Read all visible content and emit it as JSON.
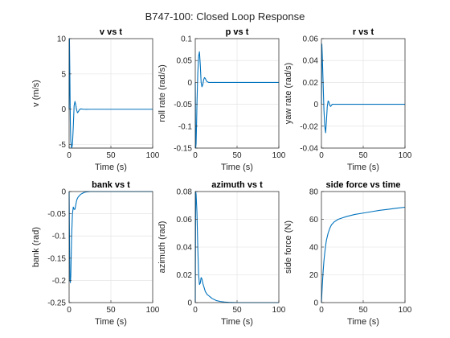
{
  "figure": {
    "title": "B747-100: Closed Loop Response",
    "line_color": "#0072BD"
  },
  "chart_data": [
    {
      "type": "line",
      "title": "v vs t",
      "xlabel": "Time (s)",
      "ylabel": "v (m/s)",
      "xlim": [
        0,
        100
      ],
      "ylim": [
        -5.5,
        10
      ],
      "xticks": [
        0,
        50,
        100
      ],
      "yticks": [
        -5,
        0,
        5,
        10
      ],
      "ytick_labels": [
        "-5",
        "0",
        "5",
        "10"
      ],
      "grid": true,
      "series": [
        {
          "x": [
            0,
            0.4,
            0.8,
            1.5,
            2,
            3,
            4,
            5,
            6,
            7,
            8,
            9,
            10,
            11,
            12,
            13,
            14,
            16,
            18,
            20,
            25,
            30,
            40,
            50,
            60,
            80,
            100
          ],
          "y": [
            0,
            10,
            6,
            -2,
            -4.5,
            -5.5,
            -5,
            -2.5,
            0.5,
            1.1,
            0.6,
            -0.1,
            -0.5,
            -0.35,
            -0.15,
            0.0,
            0.05,
            0.02,
            0,
            -0.01,
            0,
            0,
            0,
            0,
            0,
            0,
            0
          ]
        }
      ]
    },
    {
      "type": "line",
      "title": "p vs t",
      "xlabel": "Time (s)",
      "ylabel": "roll rate (rad/s)",
      "xlim": [
        0,
        100
      ],
      "ylim": [
        -0.15,
        0.1
      ],
      "xticks": [
        0,
        50,
        100
      ],
      "yticks": [
        -0.15,
        -0.1,
        -0.05,
        0,
        0.05,
        0.1
      ],
      "ytick_labels": [
        "-0.15",
        "-0.1",
        "-0.05",
        "0",
        "0.05",
        "0.1"
      ],
      "grid": true,
      "series": [
        {
          "x": [
            0,
            0.5,
            1,
            1.5,
            2,
            3,
            4,
            5,
            6,
            7,
            8,
            9,
            10,
            11,
            12,
            13,
            14,
            15,
            16,
            18,
            20,
            25,
            30,
            40,
            50,
            60,
            80,
            100
          ],
          "y": [
            0,
            -0.15,
            -0.14,
            -0.1,
            -0.05,
            0.02,
            0.06,
            0.07,
            0.04,
            0.0,
            -0.01,
            -0.005,
            0.006,
            0.011,
            0.009,
            0.005,
            0.002,
            0.001,
            0.0,
            0.0,
            0.0,
            0.0,
            0.0,
            0.0,
            0.0,
            0.0,
            0.0,
            0.0
          ]
        }
      ]
    },
    {
      "type": "line",
      "title": "r vs t",
      "xlabel": "Time (s)",
      "ylabel": "yaw rate (rad/s)",
      "xlim": [
        0,
        100
      ],
      "ylim": [
        -0.04,
        0.06
      ],
      "xticks": [
        0,
        50,
        100
      ],
      "yticks": [
        -0.04,
        -0.02,
        0,
        0.02,
        0.04,
        0.06
      ],
      "ytick_labels": [
        "-0.04",
        "-0.02",
        "0",
        "0.02",
        "0.04",
        "0.06"
      ],
      "grid": true,
      "series": [
        {
          "x": [
            0,
            0.5,
            1,
            2,
            3,
            4,
            5,
            6,
            7,
            8,
            9,
            10,
            11,
            12,
            13,
            14,
            16,
            18,
            20,
            25,
            30,
            40,
            50,
            60,
            80,
            100
          ],
          "y": [
            0,
            0.055,
            0.045,
            0.02,
            -0.005,
            -0.02,
            -0.026,
            -0.015,
            -0.002,
            0.003,
            0.002,
            -0.001,
            -0.002,
            -0.001,
            0.0,
            0.0,
            0.0,
            0.0,
            0.0,
            0.0,
            0.0,
            0.0,
            0.0,
            0.0,
            0.0,
            0.0
          ]
        }
      ]
    },
    {
      "type": "line",
      "title": "bank vs t",
      "xlabel": "Time (s)",
      "ylabel": "bank (rad)",
      "xlim": [
        0,
        100
      ],
      "ylim": [
        -0.25,
        0
      ],
      "xticks": [
        0,
        50,
        100
      ],
      "yticks": [
        -0.25,
        -0.2,
        -0.15,
        -0.1,
        -0.05,
        0
      ],
      "ytick_labels": [
        "-0.25",
        "-0.2",
        "-0.15",
        "-0.1",
        "-0.05",
        "0"
      ],
      "grid": true,
      "series": [
        {
          "x": [
            0,
            0.5,
            1,
            1.5,
            2,
            3,
            4,
            5,
            6,
            7,
            8,
            9,
            10,
            11,
            12,
            13,
            14,
            16,
            18,
            20,
            25,
            30,
            40,
            50,
            60,
            80,
            100
          ],
          "y": [
            0,
            -0.12,
            -0.2,
            -0.205,
            -0.19,
            -0.1,
            -0.05,
            -0.035,
            -0.04,
            -0.04,
            -0.03,
            -0.02,
            -0.015,
            -0.012,
            -0.01,
            -0.008,
            -0.006,
            -0.004,
            -0.002,
            -0.001,
            0.0,
            0.0,
            0.0,
            0.0,
            0.0,
            0.0,
            0.0
          ]
        }
      ]
    },
    {
      "type": "line",
      "title": "azimuth vs t",
      "xlabel": "Time (s)",
      "ylabel": "azimuth (rad)",
      "xlim": [
        0,
        100
      ],
      "ylim": [
        0,
        0.08
      ],
      "xticks": [
        0,
        50,
        100
      ],
      "yticks": [
        0,
        0.02,
        0.04,
        0.06,
        0.08
      ],
      "ytick_labels": [
        "0",
        "0.02",
        "0.04",
        "0.06",
        "0.08"
      ],
      "grid": true,
      "series": [
        {
          "x": [
            0,
            0.5,
            1,
            2,
            3,
            4,
            5,
            6,
            7,
            8,
            9,
            10,
            11,
            12,
            14,
            16,
            18,
            20,
            25,
            30,
            35,
            40,
            50,
            60,
            80,
            100
          ],
          "y": [
            0,
            0.08,
            0.078,
            0.065,
            0.04,
            0.02,
            0.013,
            0.014,
            0.018,
            0.017,
            0.014,
            0.012,
            0.01,
            0.008,
            0.006,
            0.005,
            0.004,
            0.003,
            0.0015,
            0.0008,
            0.0004,
            0.0002,
            0.0,
            0.0,
            0.0,
            0.0
          ]
        }
      ]
    },
    {
      "type": "line",
      "title": "side force vs time",
      "xlabel": "Time (s)",
      "ylabel": "side force (N)",
      "xlim": [
        0,
        100
      ],
      "ylim": [
        0,
        80
      ],
      "xticks": [
        0,
        50,
        100
      ],
      "yticks": [
        0,
        20,
        40,
        60,
        80
      ],
      "ytick_labels": [
        "0",
        "20",
        "40",
        "60",
        "80"
      ],
      "grid": true,
      "series": [
        {
          "x": [
            0,
            1,
            2,
            3,
            4,
            5,
            6,
            8,
            10,
            12,
            15,
            20,
            25,
            30,
            40,
            50,
            60,
            70,
            80,
            90,
            100
          ],
          "y": [
            0,
            12,
            22,
            30,
            36,
            41,
            45,
            50,
            53.5,
            56,
            58,
            60,
            61,
            62,
            63.5,
            64.5,
            65.5,
            66.5,
            67.2,
            68,
            68.7
          ]
        }
      ]
    }
  ]
}
